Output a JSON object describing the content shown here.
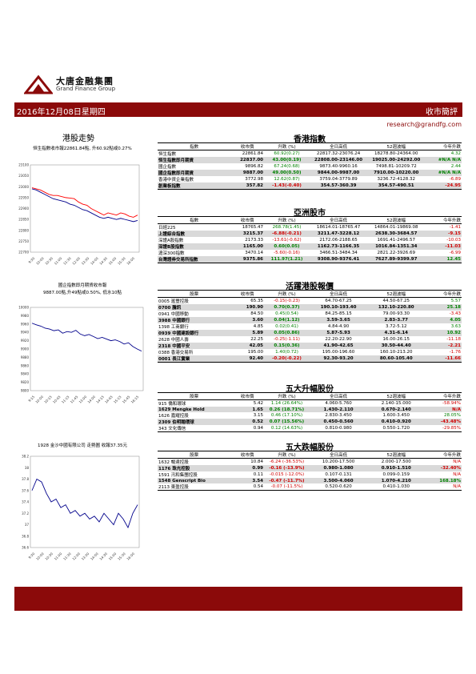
{
  "brand": {
    "name_cn": "大唐金融集團",
    "name_en": "Grand Finance Group"
  },
  "banner": {
    "date": "2016年12月08日星期四",
    "title": "收市簡評"
  },
  "email": "research@grandfg.com",
  "left": {
    "title": "港股走勢",
    "hsi_caption": "恒生指數收市報22861.84點, 升60.92點或0.27%",
    "hsi_chart": {
      "type": "line",
      "ylim": [
        22700,
        23100
      ],
      "yticks": [
        "23100",
        "23050",
        "23000",
        "22950",
        "22900",
        "22850",
        "22800",
        "22750",
        "22700"
      ],
      "xticks": [
        "9:30",
        "10:00",
        "10:30",
        "11:00",
        "11:30",
        "12:00",
        "13:30",
        "14:00",
        "14:30",
        "15:00",
        "15:30",
        "16:00"
      ],
      "series": [
        {
          "color": "#ff0000",
          "values": [
            22995,
            22990,
            22985,
            22975,
            22965,
            22960,
            22960,
            22955,
            22950,
            22948,
            22945,
            22930,
            22920,
            22915,
            22900,
            22890,
            22880,
            22870,
            22880,
            22875,
            22870,
            22880,
            22875,
            22865,
            22860,
            22870
          ]
        },
        {
          "color": "#00008b",
          "values": [
            22990,
            22985,
            22975,
            22965,
            22955,
            22945,
            22940,
            22935,
            22930,
            22920,
            22915,
            22905,
            22895,
            22890,
            22880,
            22870,
            22860,
            22855,
            22860,
            22855,
            22850,
            22855,
            22850,
            22845,
            22840,
            22845
          ]
        }
      ]
    },
    "hscei_caption_1": "國企指數即月期貨收市報",
    "hscei_caption_2": "9887.00點,升49點或0.50%, 低水10點",
    "hscei_chart": {
      "type": "line",
      "ylim": [
        9800,
        10000
      ],
      "yticks": [
        "10000",
        "9980",
        "9960",
        "9940",
        "9920",
        "9900",
        "9880",
        "9860",
        "9840",
        "9820",
        "9800"
      ],
      "xticks": [
        "9:15",
        "10:00",
        "10:15",
        "10:45",
        "11:15",
        "11:45",
        "13:00",
        "14:00",
        "14:15",
        "14:45",
        "15:15",
        "15:45",
        "16:15"
      ],
      "series": [
        {
          "color": "#00008b",
          "values": [
            9962,
            9958,
            9955,
            9950,
            9948,
            9944,
            9946,
            9938,
            9942,
            9940,
            9945,
            9936,
            9932,
            9935,
            9930,
            9925,
            9928,
            9924,
            9920,
            9922,
            9918,
            9912,
            9915,
            9906,
            9900,
            9895
          ]
        }
      ]
    },
    "stock_caption": "1928 金沙中國有限公司 走勢圖 收報37.35元",
    "stock_chart": {
      "type": "line",
      "ylim": [
        36.6,
        38.2
      ],
      "yticks": [
        "38.2",
        "38",
        "37.8",
        "37.6",
        "37.4",
        "37.2",
        "37",
        "36.8",
        "36.6"
      ],
      "xticks": [
        "9:30",
        "10:00",
        "10:30",
        "11:00",
        "11:30",
        "12:00",
        "13:30",
        "14:00",
        "14:30",
        "15:00",
        "15:30",
        "16:00"
      ],
      "series": [
        {
          "color": "#00008b",
          "values": [
            37.6,
            37.8,
            37.75,
            37.55,
            37.4,
            37.45,
            37.3,
            37.35,
            37.2,
            37.25,
            37.15,
            37.2,
            37.1,
            37.15,
            37.05,
            37.2,
            37.1,
            37.0,
            37.2,
            37.1,
            36.95,
            37.2,
            37.35
          ]
        }
      ]
    }
  },
  "hk_index": {
    "title": "香港指數",
    "headers": [
      "指數",
      "收市價",
      "升跌 (%)",
      "全日高低",
      "52週波幅",
      "今年升跌"
    ],
    "rows": [
      {
        "name": "恒生指數",
        "close": "22861.84",
        "chg": "60.92(0.27)",
        "range": "22817.32-23076.24",
        "w52": "18278.80-24364.00",
        "ytd": "4.32",
        "hl": false,
        "cc": "pos",
        "yc": "pos"
      },
      {
        "name": "恒生指數即月期貨",
        "close": "22837.00",
        "chg": "43.00(0.19)",
        "range": "22808.00-23146.00",
        "w52": "19025.00-24292.00",
        "ytd": "#N/A N/A",
        "hl": true,
        "cc": "pos",
        "yc": "pos"
      },
      {
        "name": "國企指數",
        "close": "9896.82",
        "chg": "67.24(0.68)",
        "range": "9873.40-9960.16",
        "w52": "7498.81-10209.72",
        "ytd": "2.44",
        "hl": false,
        "cc": "pos",
        "yc": "pos"
      },
      {
        "name": "國企指數即月期貨",
        "close": "9887.00",
        "chg": "49.00(0.50)",
        "range": "9844.00-9987.00",
        "w52": "7910.00-10220.00",
        "ytd": "#N/A N/A",
        "hl": true,
        "cc": "pos",
        "yc": "pos"
      },
      {
        "name": "香港中資企業指數",
        "close": "3772.98",
        "chg": "12.62(0.87)",
        "range": "3759.04-3779.89",
        "w52": "3236.72-4128.32",
        "ytd": "-6.89",
        "hl": false,
        "cc": "pos",
        "yc": "neg"
      },
      {
        "name": "創業板指數",
        "close": "357.82",
        "chg": "-1.43(-0.40)",
        "range": "354.57-360.39",
        "w52": "354.57-490.51",
        "ytd": "-24.95",
        "hl": true,
        "cc": "neg",
        "yc": "neg"
      }
    ]
  },
  "asia": {
    "title": "亞洲股市",
    "headers": [
      "指數",
      "收市價",
      "升跌 (%)",
      "全日高低",
      "52週波幅",
      "今年升跌"
    ],
    "rows": [
      {
        "name": "日經225",
        "close": "18765.47",
        "chg": "268.78(1.45)",
        "range": "18614.01-18765.47",
        "w52": "14864.01-19869.08",
        "ytd": "-1.41",
        "hl": false,
        "cc": "pos",
        "yc": "neg"
      },
      {
        "name": "上證綜合指數",
        "close": "3215.37",
        "chg": "-6.88(-0.21)",
        "range": "3211.47-3228.12",
        "w52": "2638.30-3684.57",
        "ytd": "-9.15",
        "hl": true,
        "cc": "neg",
        "yc": "neg"
      },
      {
        "name": "深證A股指數",
        "close": "2173.33",
        "chg": "-13.61(-0.62)",
        "range": "2172.06-2188.65",
        "w52": "1691.41-2496.57",
        "ytd": "-10.03",
        "hl": false,
        "cc": "neg",
        "yc": "neg"
      },
      {
        "name": "深證B股指數",
        "close": "1165.00",
        "chg": "0.60(0.05)",
        "range": "1162.73-1166.35",
        "w52": "1016.84-1351.34",
        "ytd": "-11.03",
        "hl": true,
        "cc": "pos",
        "yc": "neg"
      },
      {
        "name": "滬深300指數",
        "close": "3470.14",
        "chg": "-5.60(-0.16)",
        "range": "3466.51-3484.34",
        "w52": "2821.22-3926.69",
        "ytd": "-6.99",
        "hl": false,
        "cc": "neg",
        "yc": "neg"
      },
      {
        "name": "台灣證券交易所指數",
        "close": "9375.86",
        "chg": "111.97(1.21)",
        "range": "9308.90-9376.41",
        "w52": "7627.89-9399.97",
        "ytd": "12.45",
        "hl": true,
        "cc": "pos",
        "yc": "pos"
      }
    ]
  },
  "active": {
    "title": "活躍港股報價",
    "headers": [
      "股票",
      "收市價",
      "升跌 (%)",
      "全日高低",
      "52週波幅",
      "今年升跌"
    ],
    "rows": [
      {
        "name": "0005 滙豐控股",
        "close": "65.35",
        "chg": "-0.15(-0.23)",
        "range": "64.70-67.25",
        "w52": "44.50-67.25",
        "ytd": "5.57",
        "hl": false,
        "cc": "neg",
        "yc": "pos"
      },
      {
        "name": "0700 騰訊",
        "close": "190.90",
        "chg": "0.70(0.37)",
        "range": "190.10-193.40",
        "w52": "132.10-220.80",
        "ytd": "25.18",
        "hl": true,
        "cc": "pos",
        "yc": "pos"
      },
      {
        "name": "0941 中國移動",
        "close": "84.50",
        "chg": "0.45(0.54)",
        "range": "84.25-85.15",
        "w52": "79.00-93.30",
        "ytd": "-3.43",
        "hl": false,
        "cc": "pos",
        "yc": "neg"
      },
      {
        "name": "3988 中國銀行",
        "close": "3.60",
        "chg": "0.04(1.12)",
        "range": "3.59-3.65",
        "w52": "2.83-3.77",
        "ytd": "4.05",
        "hl": true,
        "cc": "pos",
        "yc": "pos"
      },
      {
        "name": "1398 工商銀行",
        "close": "4.85",
        "chg": "0.02(0.41)",
        "range": "4.84-4.90",
        "w52": "3.72-5.12",
        "ytd": "3.63",
        "hl": false,
        "cc": "pos",
        "yc": "pos"
      },
      {
        "name": "0939 中國建設銀行",
        "close": "5.89",
        "chg": "0.05(0.86)",
        "range": "5.87-5.93",
        "w52": "4.31-6.14",
        "ytd": "10.92",
        "hl": true,
        "cc": "pos",
        "yc": "pos"
      },
      {
        "name": "2628 中國人壽",
        "close": "22.25",
        "chg": "-0.25(-1.11)",
        "range": "22.20-22.90",
        "w52": "16.00-26.15",
        "ytd": "-11.18",
        "hl": false,
        "cc": "neg",
        "yc": "neg"
      },
      {
        "name": "2318 中國平安",
        "close": "42.05",
        "chg": "0.15(0.36)",
        "range": "41.90-42.65",
        "w52": "30.50-44.40",
        "ytd": "-2.21",
        "hl": true,
        "cc": "pos",
        "yc": "neg"
      },
      {
        "name": "0388 香港交易所",
        "close": "195.00",
        "chg": "1.40(0.72)",
        "range": "195.00-196.60",
        "w52": "160.10-213.20",
        "ytd": "-1.76",
        "hl": false,
        "cc": "pos",
        "yc": "neg"
      },
      {
        "name": "0001 長江實業",
        "close": "92.40",
        "chg": "-0.20(-0.22)",
        "range": "92.30-93.20",
        "w52": "80.60-105.40",
        "ytd": "-11.66",
        "hl": true,
        "cc": "neg",
        "yc": "neg"
      }
    ]
  },
  "gainers": {
    "title": "五大升幅股份",
    "headers": [
      "股票",
      "收市價",
      "升跌 (%)",
      "全日高低",
      "52週波幅",
      "今年升跌"
    ],
    "rows": [
      {
        "name": "915 僑和環球",
        "close": "5.42",
        "chg": "1.14 (26.64%)",
        "range": "4.060-5.760",
        "w52": "2.140-15.000",
        "ytd": "-58.94%",
        "hl": false,
        "cc": "pos",
        "yc": "neg"
      },
      {
        "name": "1629 Mengke Hold",
        "close": "1.65",
        "chg": "0.26 (18.71%)",
        "range": "1.430-2.110",
        "w52": "0.670-2.140",
        "ytd": "N/A",
        "hl": true,
        "cc": "pos",
        "yc": "neg"
      },
      {
        "name": "1626 嘉耀控股",
        "close": "3.15",
        "chg": "0.46 (17.10%)",
        "range": "2.830-3.450",
        "w52": "1.600-3.450",
        "ytd": "28.05%",
        "hl": false,
        "cc": "pos",
        "yc": "pos"
      },
      {
        "name": "2309 伯明翰環球",
        "close": "0.52",
        "chg": "0.07 (15.56%)",
        "range": "0.450-0.560",
        "w52": "0.410-0.920",
        "ytd": "-43.48%",
        "hl": true,
        "cc": "pos",
        "yc": "neg"
      },
      {
        "name": "343 文化傳信",
        "close": "0.94",
        "chg": "0.12 (14.63%)",
        "range": "0.810-0.980",
        "w52": "0.550-1.720",
        "ytd": "-29.85%",
        "hl": false,
        "cc": "pos",
        "yc": "neg"
      }
    ]
  },
  "losers": {
    "title": "五大跌幅股份",
    "headers": [
      "股票",
      "收市價",
      "升跌 (%)",
      "全日高低",
      "52週波幅",
      "今年升跌"
    ],
    "rows": [
      {
        "name": "1632 暢達控股",
        "close": "10.84",
        "chg": "-6.24 (-36.53%)",
        "range": "10.200-17.500",
        "w52": "2.000-17.500",
        "ytd": "N/A",
        "hl": false,
        "cc": "neg",
        "yc": "neg"
      },
      {
        "name": "1176 珠光控股",
        "close": "0.99",
        "chg": "-0.16 (-13.9%)",
        "range": "0.980-1.080",
        "w52": "0.910-1.510",
        "ytd": "-32.40%",
        "hl": true,
        "cc": "neg",
        "yc": "neg"
      },
      {
        "name": "1591 汛和集團控股",
        "close": "0.11",
        "chg": "-0.015 (-12.0%)",
        "range": "0.107-0.131",
        "w52": "0.099-0.159",
        "ytd": "N/A",
        "hl": false,
        "cc": "neg",
        "yc": "neg"
      },
      {
        "name": "1548 Genscript Bio",
        "close": "3.54",
        "chg": "-0.47 (-11.7%)",
        "range": "3.500-4.060",
        "w52": "1.070-4.210",
        "ytd": "168.18%",
        "hl": true,
        "cc": "neg",
        "yc": "pos"
      },
      {
        "name": "2113 東盈控股",
        "close": "0.54",
        "chg": "-0.07 (-11.5%)",
        "range": "0.520-0.620",
        "w52": "0.410-1.030",
        "ytd": "N/A",
        "hl": false,
        "cc": "neg",
        "yc": "neg"
      }
    ]
  }
}
